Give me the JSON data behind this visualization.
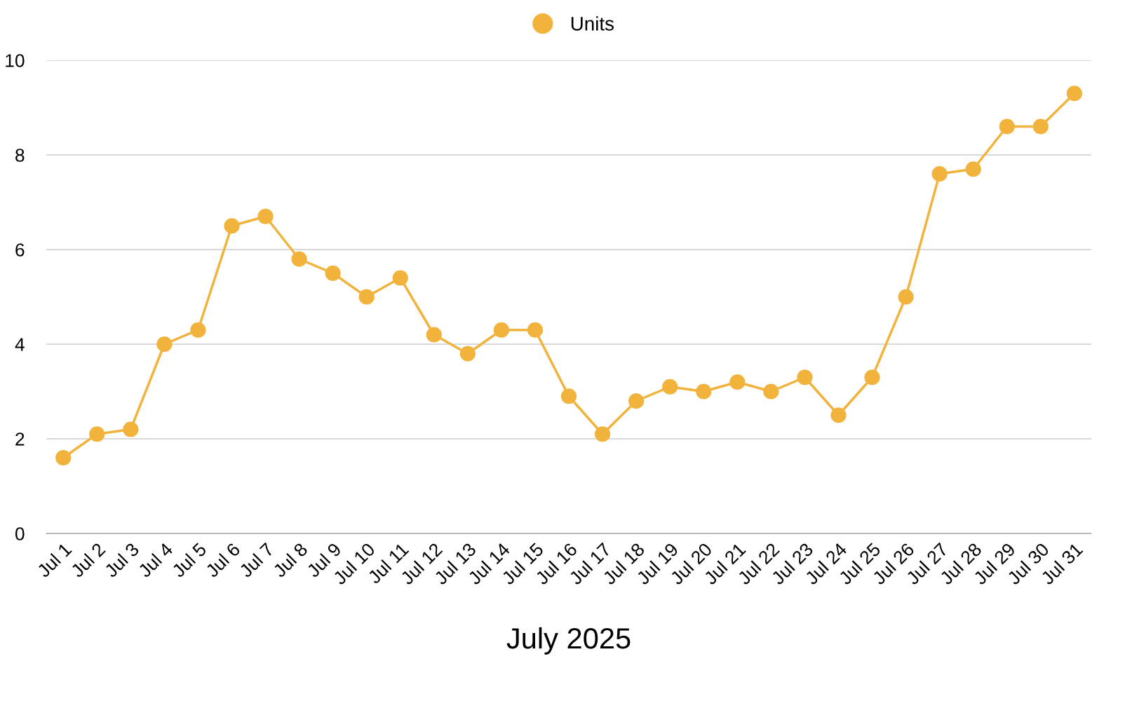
{
  "chart_data": {
    "type": "line",
    "xlabel": "July 2025",
    "categories": [
      "Jul 1",
      "Jul 2",
      "Jul 3",
      "Jul 4",
      "Jul 5",
      "Jul 6",
      "Jul 7",
      "Jul 8",
      "Jul 9",
      "Jul 10",
      "Jul 11",
      "Jul 12",
      "Jul 13",
      "Jul 14",
      "Jul 15",
      "Jul 16",
      "Jul 17",
      "Jul 18",
      "Jul 19",
      "Jul 20",
      "Jul 21",
      "Jul 22",
      "Jul 23",
      "Jul 24",
      "Jul 25",
      "Jul 26",
      "Jul 27",
      "Jul 28",
      "Jul 29",
      "Jul 30",
      "Jul 31"
    ],
    "series": [
      {
        "name": "Units",
        "color": "#f2b33d",
        "values": [
          1.6,
          2.1,
          2.2,
          4.0,
          4.3,
          6.5,
          6.7,
          5.8,
          5.5,
          5.0,
          5.4,
          4.2,
          3.8,
          4.3,
          4.3,
          2.9,
          2.1,
          2.8,
          3.1,
          3.0,
          3.2,
          3.0,
          3.3,
          2.5,
          3.3,
          5.0,
          7.6,
          7.7,
          8.6,
          8.6,
          9.3
        ]
      }
    ],
    "ylim": [
      0,
      10
    ],
    "yticks": [
      0,
      2,
      4,
      6,
      8,
      10
    ],
    "grid": "y",
    "legend": "top",
    "marker": "circle",
    "line_style": "solid"
  }
}
